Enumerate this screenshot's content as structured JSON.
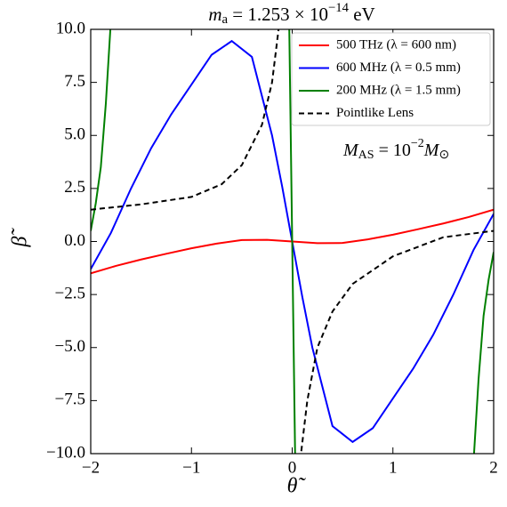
{
  "chart_data": {
    "type": "line",
    "title": [
      "m",
      "a",
      " = 1.253 × 10",
      "−14",
      " eV"
    ],
    "xlabel": "θ̃",
    "ylabel": "β̃",
    "annotation": [
      "M",
      "AS",
      " = 10",
      "−2",
      "M",
      "⊙"
    ],
    "xlim": [
      -2,
      2
    ],
    "ylim": [
      -10,
      10
    ],
    "xticks": [
      {
        "value": -2,
        "label": "−2"
      },
      {
        "value": -1,
        "label": "−1"
      },
      0,
      1,
      2
    ],
    "yticks": [
      {
        "value": -10,
        "label": "−10.0"
      },
      {
        "value": -7.5,
        "label": "−7.5"
      },
      {
        "value": -5,
        "label": "−5.0"
      },
      {
        "value": -2.5,
        "label": "−2.5"
      },
      {
        "value": 0,
        "label": "0.0"
      },
      {
        "value": 2.5,
        "label": "2.5"
      },
      {
        "value": 5,
        "label": "5.0"
      },
      {
        "value": 7.5,
        "label": "7.5"
      },
      {
        "value": 10,
        "label": "10.0"
      }
    ],
    "legend": "upper right",
    "series": [
      {
        "name": "500 THz (λ = 600 nm)",
        "color": "#ff0000",
        "dash": false,
        "x": [
          -2,
          -1.75,
          -1.5,
          -1.25,
          -1,
          -0.75,
          -0.5,
          -0.25,
          0,
          0.25,
          0.5,
          0.75,
          1,
          1.25,
          1.5,
          1.75,
          2
        ],
        "values": [
          -1.5,
          -1.15,
          -0.85,
          -0.58,
          -0.32,
          -0.1,
          0.07,
          0.08,
          0,
          -0.08,
          -0.07,
          0.1,
          0.32,
          0.58,
          0.85,
          1.15,
          1.5
        ]
      },
      {
        "name": "600 MHz (λ = 0.5 mm)",
        "color": "#0000ff",
        "dash": false,
        "x": [
          -2,
          -1.8,
          -1.6,
          -1.4,
          -1.2,
          -1,
          -0.8,
          -0.6,
          -0.4,
          -0.2,
          -0.1,
          0,
          0.1,
          0.2,
          0.4,
          0.6,
          0.8,
          1,
          1.2,
          1.4,
          1.6,
          1.8,
          2
        ],
        "values": [
          -1.3,
          0.4,
          2.5,
          4.4,
          6.0,
          7.4,
          8.8,
          9.45,
          8.7,
          5.0,
          2.6,
          0,
          -2.6,
          -5.0,
          -8.7,
          -9.45,
          -8.8,
          -7.4,
          -6.0,
          -4.4,
          -2.5,
          -0.4,
          1.3
        ]
      },
      {
        "name": "200 MHz (λ = 1.5 mm)",
        "color": "#008000",
        "dash": false,
        "x": [
          -2,
          -1.95,
          -1.9,
          -1.85,
          -1.8,
          -1,
          -0.03,
          0,
          0.03,
          1,
          1.8,
          1.85,
          1.9,
          1.95,
          2
        ],
        "values": [
          0.5,
          1.8,
          3.5,
          6.5,
          10.4,
          null,
          10.4,
          0,
          -10.4,
          null,
          -10.4,
          -6.5,
          -3.5,
          -1.8,
          -0.5
        ]
      },
      {
        "name": "Pointlike Lens",
        "color": "#000000",
        "dash": true,
        "x": [
          -2,
          -1.5,
          -1,
          -0.7,
          -0.5,
          -0.3,
          -0.2,
          -0.13,
          0,
          0.08,
          0.15,
          0.25,
          0.4,
          0.6,
          1,
          1.5,
          2
        ],
        "values": [
          1.5,
          1.75,
          2.1,
          2.7,
          3.6,
          5.5,
          7.5,
          10.2,
          null,
          -10.3,
          -7.5,
          -5.0,
          -3.3,
          -2.0,
          -0.7,
          0.2,
          0.5
        ]
      }
    ]
  }
}
